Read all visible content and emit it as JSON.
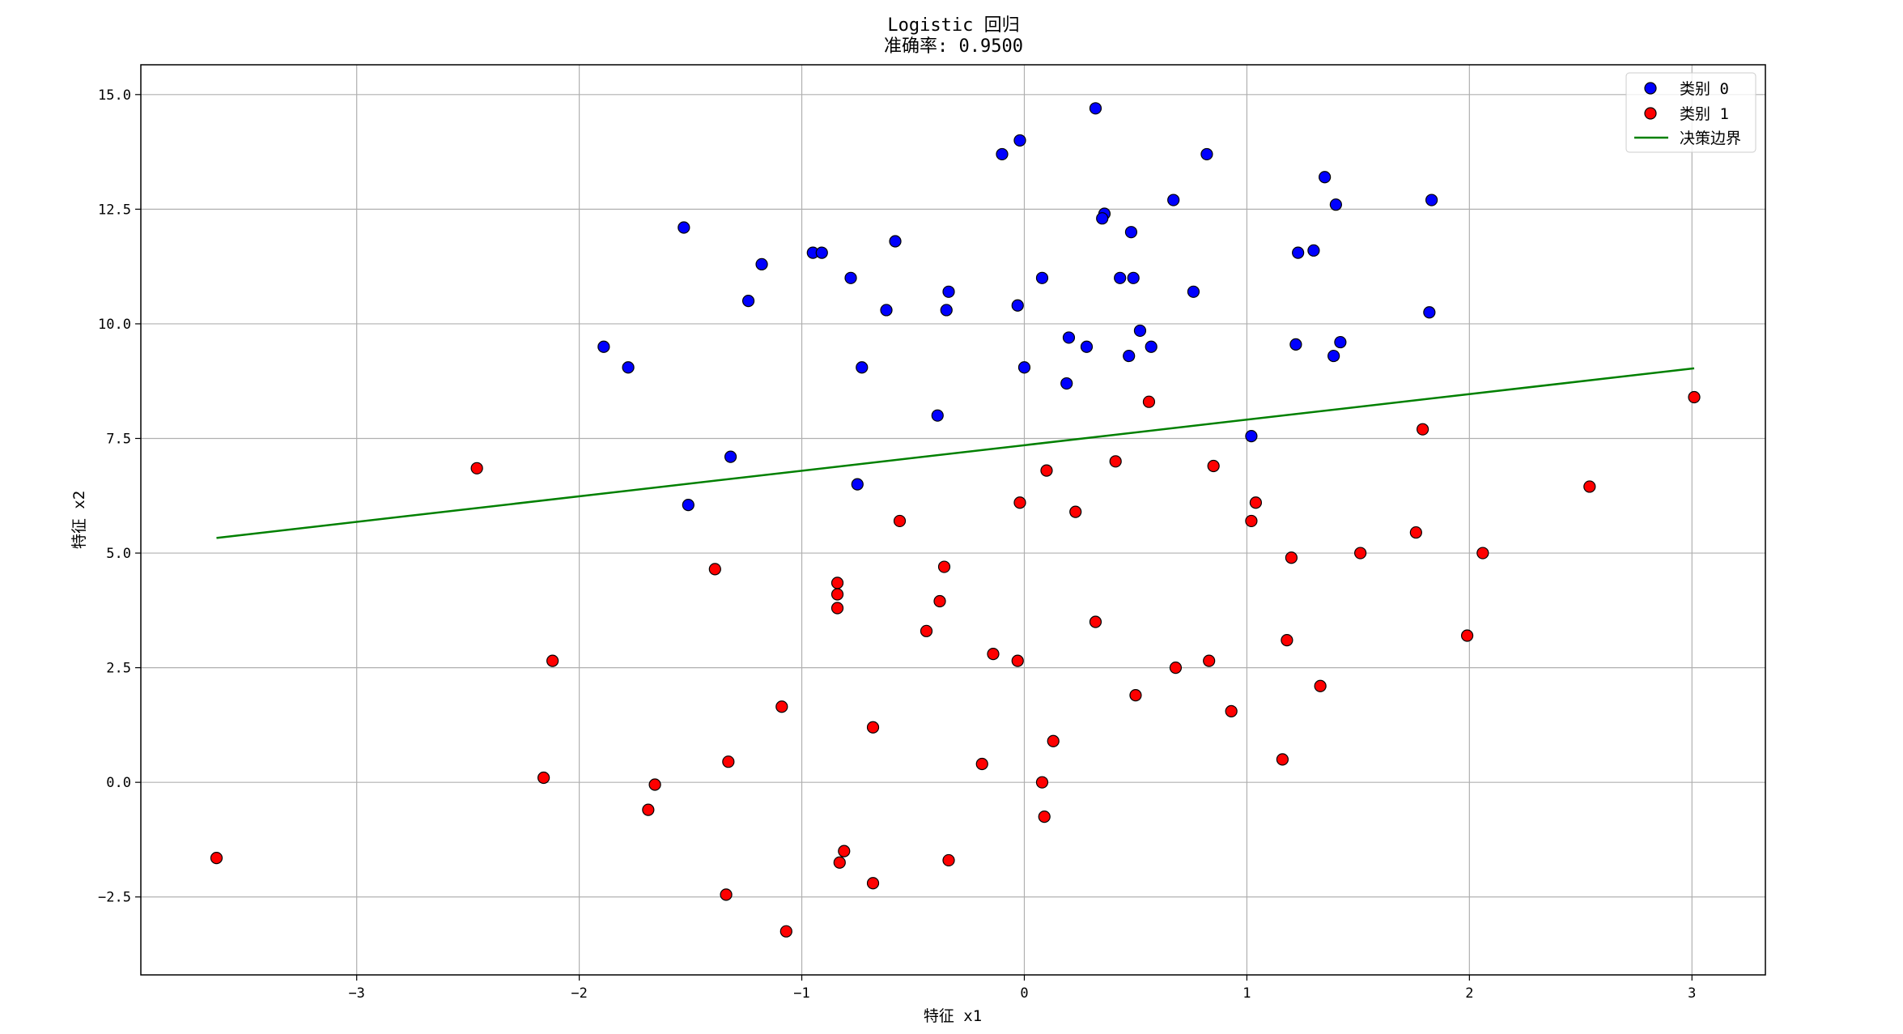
{
  "chart_data": {
    "type": "scatter",
    "title": "Logistic 回归",
    "subtitle": "准确率: 0.9500",
    "xlabel": "特征 x1",
    "ylabel": "特征 x2",
    "xlim": [
      -3.97,
      3.33
    ],
    "ylim": [
      -4.2,
      15.65
    ],
    "xticks": [
      -3,
      -2,
      -1,
      0,
      1,
      2,
      3
    ],
    "xtick_labels": [
      "−3",
      "−2",
      "−1",
      "0",
      "1",
      "2",
      "3"
    ],
    "yticks": [
      -2.5,
      0,
      2.5,
      5,
      7.5,
      10,
      12.5,
      15
    ],
    "ytick_labels": [
      "−2.5",
      "0.0",
      "2.5",
      "5.0",
      "7.5",
      "10.0",
      "12.5",
      "15.0"
    ],
    "grid": true,
    "legend_position": "top-right",
    "series": [
      {
        "name": "类别 0",
        "color": "#0000ff",
        "marker": "circle",
        "points": [
          [
            0.32,
            14.7
          ],
          [
            -0.02,
            14.0
          ],
          [
            -0.1,
            13.7
          ],
          [
            0.82,
            13.7
          ],
          [
            1.35,
            13.2
          ],
          [
            1.4,
            12.6
          ],
          [
            1.83,
            12.7
          ],
          [
            -1.53,
            12.1
          ],
          [
            0.67,
            12.7
          ],
          [
            0.36,
            12.4
          ],
          [
            0.35,
            12.3
          ],
          [
            0.48,
            12.0
          ],
          [
            -0.58,
            11.8
          ],
          [
            -0.95,
            11.55
          ],
          [
            -0.91,
            11.55
          ],
          [
            -1.18,
            11.3
          ],
          [
            1.23,
            11.55
          ],
          [
            1.3,
            11.6
          ],
          [
            0.08,
            11.0
          ],
          [
            -0.78,
            11.0
          ],
          [
            0.43,
            11.0
          ],
          [
            0.49,
            11.0
          ],
          [
            -1.24,
            10.5
          ],
          [
            -0.34,
            10.7
          ],
          [
            0.76,
            10.7
          ],
          [
            -0.62,
            10.3
          ],
          [
            -0.35,
            10.3
          ],
          [
            -0.03,
            10.4
          ],
          [
            1.82,
            10.25
          ],
          [
            0.2,
            9.7
          ],
          [
            0.52,
            9.85
          ],
          [
            0.28,
            9.5
          ],
          [
            0.57,
            9.5
          ],
          [
            1.22,
            9.55
          ],
          [
            1.42,
            9.6
          ],
          [
            1.39,
            9.3
          ],
          [
            0.47,
            9.3
          ],
          [
            -1.89,
            9.5
          ],
          [
            -1.78,
            9.05
          ],
          [
            -0.73,
            9.05
          ],
          [
            0.0,
            9.05
          ],
          [
            0.19,
            8.7
          ],
          [
            -0.39,
            8.0
          ],
          [
            1.02,
            7.55
          ],
          [
            -1.32,
            7.1
          ],
          [
            -0.75,
            6.5
          ],
          [
            -1.51,
            6.05
          ]
        ]
      },
      {
        "name": "类别 1",
        "color": "#ff0000",
        "marker": "circle",
        "points": [
          [
            3.01,
            8.4
          ],
          [
            0.56,
            8.3
          ],
          [
            1.79,
            7.7
          ],
          [
            0.41,
            7.0
          ],
          [
            0.1,
            6.8
          ],
          [
            0.85,
            6.9
          ],
          [
            -2.46,
            6.85
          ],
          [
            2.54,
            6.45
          ],
          [
            -0.02,
            6.1
          ],
          [
            1.04,
            6.1
          ],
          [
            0.23,
            5.9
          ],
          [
            1.02,
            5.7
          ],
          [
            -0.56,
            5.7
          ],
          [
            1.76,
            5.45
          ],
          [
            1.2,
            4.9
          ],
          [
            1.51,
            5.0
          ],
          [
            2.06,
            5.0
          ],
          [
            -1.39,
            4.65
          ],
          [
            -0.36,
            4.7
          ],
          [
            -0.84,
            4.35
          ],
          [
            -0.84,
            4.1
          ],
          [
            -0.84,
            3.8
          ],
          [
            -0.38,
            3.95
          ],
          [
            -0.44,
            3.3
          ],
          [
            0.32,
            3.5
          ],
          [
            1.18,
            3.1
          ],
          [
            1.99,
            3.2
          ],
          [
            -2.12,
            2.65
          ],
          [
            -0.14,
            2.8
          ],
          [
            -0.03,
            2.65
          ],
          [
            0.83,
            2.65
          ],
          [
            0.68,
            2.5
          ],
          [
            1.33,
            2.1
          ],
          [
            0.5,
            1.9
          ],
          [
            0.93,
            1.55
          ],
          [
            -1.09,
            1.65
          ],
          [
            -0.68,
            1.2
          ],
          [
            0.13,
            0.9
          ],
          [
            1.16,
            0.5
          ],
          [
            -1.33,
            0.45
          ],
          [
            -0.19,
            0.4
          ],
          [
            -2.16,
            0.1
          ],
          [
            0.08,
            0.0
          ],
          [
            -1.66,
            -0.05
          ],
          [
            -1.69,
            -0.6
          ],
          [
            0.09,
            -0.75
          ],
          [
            -0.81,
            -1.5
          ],
          [
            -0.83,
            -1.75
          ],
          [
            -0.34,
            -1.7
          ],
          [
            -3.63,
            -1.65
          ],
          [
            -0.68,
            -2.2
          ],
          [
            -1.34,
            -2.45
          ],
          [
            -1.07,
            -3.25
          ]
        ]
      }
    ],
    "decision_boundary": {
      "name": "决策边界",
      "color": "#008000",
      "points": [
        [
          -3.63,
          5.33
        ],
        [
          3.01,
          9.03
        ]
      ]
    }
  }
}
